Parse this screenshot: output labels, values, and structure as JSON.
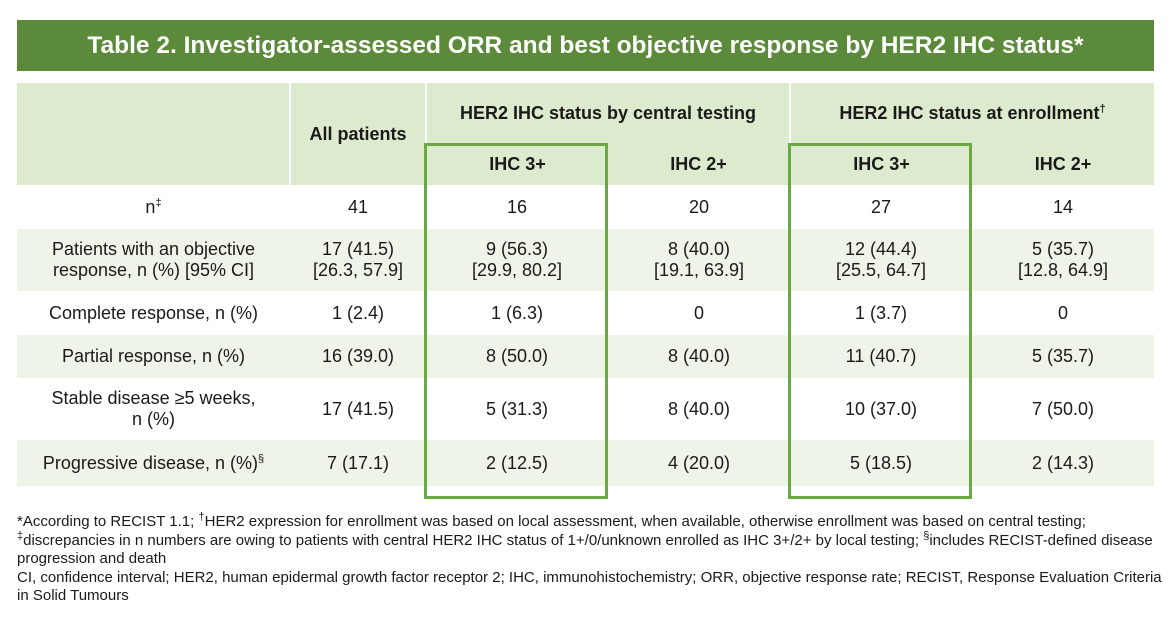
{
  "title": "Table 2. Investigator-assessed ORR and best objective response by HER2 IHC status*",
  "header": {
    "all_patients": "All patients",
    "group_central": "HER2 IHC status by central testing",
    "group_enrollment": "HER2 IHC status at enrollment",
    "group_enrollment_mark": "†",
    "ihc3": "IHC 3+",
    "ihc2": "IHC 2+"
  },
  "rows": [
    {
      "label": "n",
      "label_mark": "‡",
      "values": [
        "41",
        "16",
        "20",
        "27",
        "14"
      ]
    },
    {
      "label_line1": "Patients with an objective",
      "label_line2": "response, n (%) [95% CI]",
      "values_line1": [
        "17 (41.5)",
        "9 (56.3)",
        "8 (40.0)",
        "12 (44.4)",
        "5 (35.7)"
      ],
      "values_line2": [
        "[26.3, 57.9]",
        "[29.9, 80.2]",
        "[19.1, 63.9]",
        "[25.5, 64.7]",
        "[12.8, 64.9]"
      ]
    },
    {
      "label": "Complete response, n (%)",
      "values": [
        "1 (2.4)",
        "1 (6.3)",
        "0",
        "1 (3.7)",
        "0"
      ]
    },
    {
      "label": "Partial response, n (%)",
      "values": [
        "16 (39.0)",
        "8 (50.0)",
        "8 (40.0)",
        "11 (40.7)",
        "5 (35.7)"
      ]
    },
    {
      "label_line1": "Stable disease ≥5 weeks,",
      "label_line2": "n (%)",
      "values": [
        "17 (41.5)",
        "5 (31.3)",
        "8 (40.0)",
        "10 (37.0)",
        "7 (50.0)"
      ]
    },
    {
      "label": "Progressive disease, n (%)",
      "label_mark": "§",
      "values": [
        "7 (17.1)",
        "2 (12.5)",
        "4 (20.0)",
        "5 (18.5)",
        "2 (14.3)"
      ]
    }
  ],
  "footnotes": {
    "line1_a": "*According to RECIST 1.1; ",
    "line1_mark": "†",
    "line1_b": "HER2 expression for enrollment was based on local assessment, when available, otherwise enrollment was based on central testing; ",
    "line1_mark2": "‡",
    "line1_c": "discrepancies in n numbers are owing to patients with central HER2 IHC status of 1+/0/unknown enrolled as IHC 3+/2+ by local testing; ",
    "line1_mark3": "§",
    "line1_d": "includes RECIST-defined disease progression and death",
    "line2": "CI, confidence interval; HER2, human epidermal growth factor receptor 2; IHC, immunohistochemistry; ORR, objective response rate; RECIST, Response Evaluation Criteria in Solid Tumours"
  },
  "colors": {
    "title_bg": "#5b8a3a",
    "header_bg": "#dcebcd",
    "row_alt_bg": "#eef5e8",
    "highlight_border": "#6aaa45"
  }
}
